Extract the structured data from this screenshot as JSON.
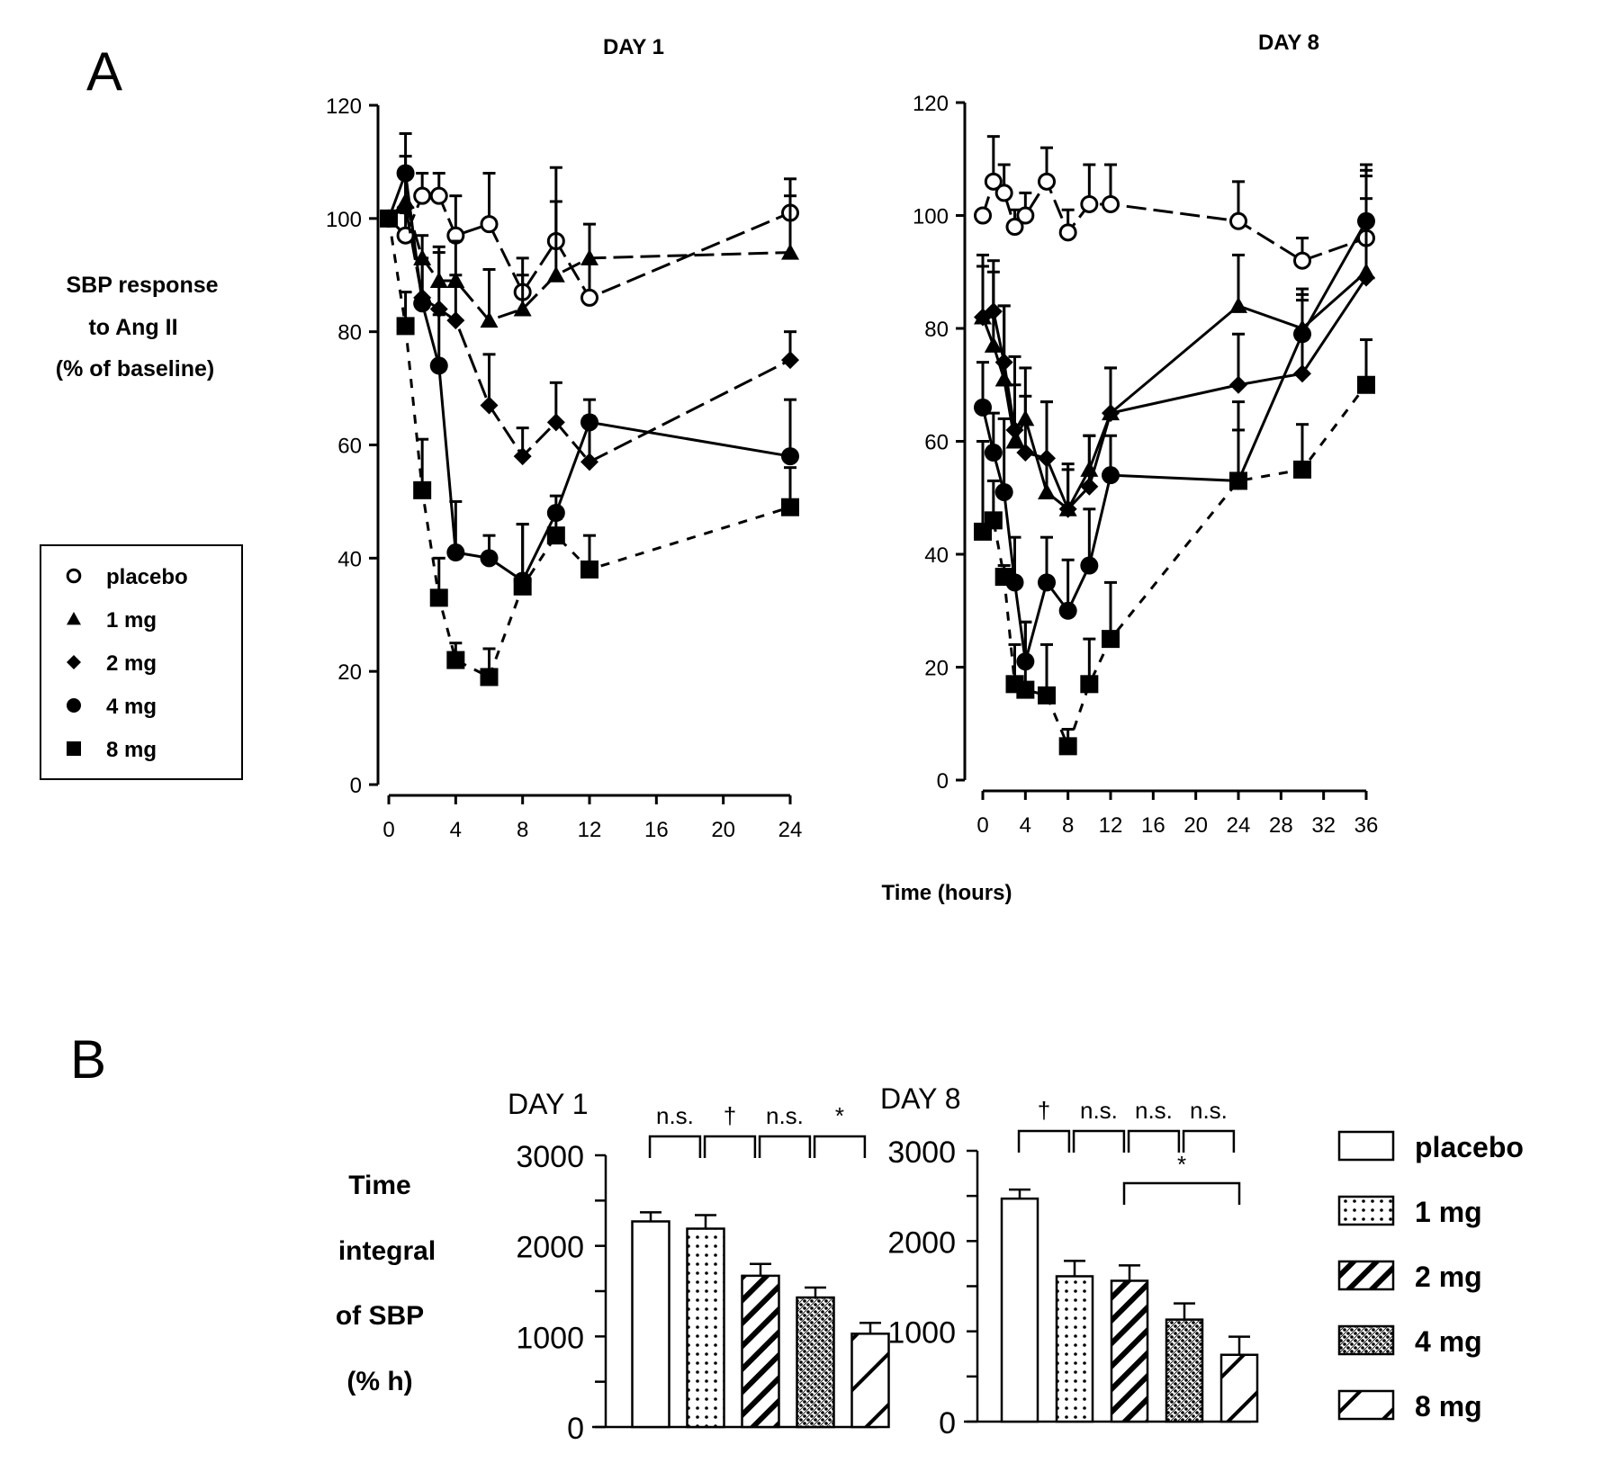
{
  "panel_labels": {
    "a": "A",
    "b": "B"
  },
  "panel_a": {
    "ylabel_lines": [
      "SBP response",
      "to Ang II",
      "(% of baseline)"
    ],
    "xlabel": "Time (hours)",
    "legend": [
      {
        "label": "placebo",
        "marker": "open-circle"
      },
      {
        "label": "1 mg",
        "marker": "filled-triangle"
      },
      {
        "label": "2 mg",
        "marker": "filled-diamond"
      },
      {
        "label": "4 mg",
        "marker": "filled-circle"
      },
      {
        "label": "8 mg",
        "marker": "filled-square"
      }
    ]
  },
  "panel_b": {
    "ylabel_lines": [
      "Time",
      "integral",
      "of SBP",
      "(% h)"
    ],
    "legend": [
      {
        "label": "placebo",
        "pattern": "blank"
      },
      {
        "label": "1 mg",
        "pattern": "dots"
      },
      {
        "label": "2 mg",
        "pattern": "dense-diagonal"
      },
      {
        "label": "4 mg",
        "pattern": "crosshatch-dots"
      },
      {
        "label": "8 mg",
        "pattern": "sparse-diagonal"
      }
    ]
  },
  "chart_data": [
    {
      "type": "line",
      "title": "DAY 1",
      "xlabel": "Time (hours)",
      "ylabel": "SBP response to Ang II (% of baseline)",
      "xlim": [
        0,
        24
      ],
      "ylim": [
        0,
        120
      ],
      "xticks": [
        0,
        4,
        8,
        12,
        16,
        20,
        24
      ],
      "yticks": [
        0,
        20,
        40,
        60,
        80,
        100,
        120
      ],
      "grid": false,
      "series": [
        {
          "name": "placebo",
          "marker": "open-circle",
          "dash": "mixed",
          "x": [
            0,
            1,
            2,
            3,
            4,
            6,
            8,
            10,
            12,
            24
          ],
          "y": [
            100,
            97,
            104,
            104,
            97,
            99,
            87,
            96,
            86,
            101
          ],
          "err": [
            0,
            4,
            4,
            4,
            7,
            9,
            6,
            13,
            6,
            6
          ]
        },
        {
          "name": "1 mg",
          "marker": "filled-triangle",
          "dash": "mixed",
          "x": [
            0,
            1,
            2,
            3,
            4,
            6,
            8,
            10,
            12,
            24
          ],
          "y": [
            100,
            103,
            93,
            89,
            89,
            82,
            84,
            90,
            93,
            94
          ],
          "err": [
            0,
            8,
            4,
            6,
            7,
            9,
            6,
            13,
            6,
            10
          ]
        },
        {
          "name": "2 mg",
          "marker": "filled-diamond",
          "dash": "mixed",
          "x": [
            0,
            1,
            2,
            3,
            4,
            6,
            8,
            10,
            12,
            24
          ],
          "y": [
            100,
            102,
            86,
            84,
            82,
            67,
            58,
            64,
            57,
            75
          ],
          "err": [
            0,
            6,
            6,
            10,
            8,
            9,
            5,
            7,
            8,
            5
          ]
        },
        {
          "name": "4 mg",
          "marker": "filled-circle",
          "dash": "solid",
          "x": [
            0,
            1,
            2,
            3,
            4,
            6,
            8,
            10,
            12,
            24
          ],
          "y": [
            100,
            108,
            85,
            74,
            41,
            40,
            36,
            48,
            64,
            58
          ],
          "err": [
            0,
            7,
            8,
            9,
            9,
            4,
            10,
            3,
            4,
            10
          ]
        },
        {
          "name": "8 mg",
          "marker": "filled-square",
          "dash": "dashed",
          "x": [
            0,
            1,
            2,
            3,
            4,
            6,
            8,
            10,
            12,
            24
          ],
          "y": [
            100,
            81,
            52,
            33,
            22,
            19,
            35,
            44,
            38,
            49
          ],
          "err": [
            0,
            6,
            9,
            7,
            3,
            5,
            11,
            3,
            6,
            7
          ]
        }
      ]
    },
    {
      "type": "line",
      "title": "DAY 8",
      "xlabel": "Time (hours)",
      "ylabel": "SBP response to Ang II (% of baseline)",
      "xlim": [
        0,
        36
      ],
      "ylim": [
        0,
        120
      ],
      "xticks": [
        0,
        4,
        8,
        12,
        16,
        20,
        24,
        28,
        32,
        36
      ],
      "yticks": [
        0,
        20,
        40,
        60,
        80,
        100,
        120
      ],
      "grid": false,
      "series": [
        {
          "name": "placebo",
          "marker": "open-circle",
          "dash": "mixed",
          "x": [
            0,
            1,
            2,
            3,
            4,
            6,
            8,
            10,
            12,
            24,
            30,
            36
          ],
          "y": [
            100,
            106,
            104,
            98,
            100,
            106,
            97,
            102,
            102,
            99,
            92,
            96
          ],
          "err": [
            0,
            8,
            5,
            3,
            4,
            6,
            4,
            7,
            7,
            7,
            4,
            12
          ]
        },
        {
          "name": "1 mg",
          "marker": "filled-triangle",
          "dash": "solid",
          "x": [
            0,
            1,
            2,
            3,
            4,
            6,
            8,
            10,
            12,
            24,
            30,
            36
          ],
          "y": [
            82,
            77,
            71,
            60,
            64,
            51,
            48,
            55,
            65,
            84,
            80,
            90
          ],
          "err": [
            9,
            13,
            13,
            15,
            9,
            16,
            8,
            6,
            8,
            9,
            6,
            13
          ]
        },
        {
          "name": "2 mg",
          "marker": "filled-diamond",
          "dash": "solid",
          "x": [
            0,
            1,
            2,
            3,
            4,
            6,
            8,
            10,
            12,
            24,
            30,
            36
          ],
          "y": [
            82,
            83,
            74,
            62,
            58,
            57,
            48,
            52,
            65,
            70,
            72,
            89
          ],
          "err": [
            11,
            9,
            10,
            8,
            10,
            10,
            7,
            9,
            8,
            9,
            13,
            18
          ]
        },
        {
          "name": "4 mg",
          "marker": "filled-circle",
          "dash": "solid",
          "x": [
            0,
            1,
            2,
            3,
            4,
            6,
            8,
            10,
            12,
            24,
            30,
            36
          ],
          "y": [
            66,
            58,
            51,
            35,
            21,
            35,
            30,
            38,
            54,
            53,
            79,
            99
          ],
          "err": [
            8,
            7,
            13,
            8,
            7,
            8,
            9,
            10,
            7,
            9,
            8,
            10
          ]
        },
        {
          "name": "8 mg",
          "marker": "filled-square",
          "dash": "dashed",
          "x": [
            0,
            1,
            2,
            3,
            4,
            6,
            8,
            10,
            12,
            24,
            30,
            36
          ],
          "y": [
            44,
            46,
            36,
            17,
            16,
            15,
            6,
            17,
            25,
            53,
            55,
            70
          ],
          "err": [
            16,
            7,
            2,
            7,
            12,
            9,
            3,
            8,
            10,
            14,
            8,
            8
          ]
        }
      ]
    },
    {
      "type": "bar",
      "title": "DAY 1",
      "ylabel": "Time integral of SBP (% h)",
      "ylim": [
        0,
        3000
      ],
      "yticks": [
        0,
        1000,
        2000,
        3000
      ],
      "categories": [
        "placebo",
        "1 mg",
        "2 mg",
        "4 mg",
        "8 mg"
      ],
      "values": [
        2270,
        2190,
        1670,
        1430,
        1030
      ],
      "err": [
        100,
        150,
        130,
        110,
        120
      ],
      "significance": [
        {
          "from": 0,
          "to": 1,
          "label": "n.s."
        },
        {
          "from": 1,
          "to": 2,
          "label": "†"
        },
        {
          "from": 2,
          "to": 3,
          "label": "n.s."
        },
        {
          "from": 3,
          "to": 4,
          "label": "*"
        }
      ]
    },
    {
      "type": "bar",
      "title": "DAY 8",
      "ylabel": "Time integral of SBP (% h)",
      "ylim": [
        0,
        3000
      ],
      "yticks": [
        0,
        1000,
        2000,
        3000
      ],
      "categories": [
        "placebo",
        "1 mg",
        "2 mg",
        "4 mg",
        "8 mg"
      ],
      "values": [
        2470,
        1610,
        1560,
        1130,
        740
      ],
      "err": [
        100,
        170,
        170,
        180,
        200
      ],
      "significance": [
        {
          "from": 0,
          "to": 1,
          "label": "†"
        },
        {
          "from": 1,
          "to": 2,
          "label": "n.s."
        },
        {
          "from": 2,
          "to": 3,
          "label": "n.s."
        },
        {
          "from": 3,
          "to": 4,
          "label": "n.s."
        },
        {
          "from": 2,
          "to": 4,
          "label": "*",
          "level": 2
        }
      ]
    }
  ]
}
